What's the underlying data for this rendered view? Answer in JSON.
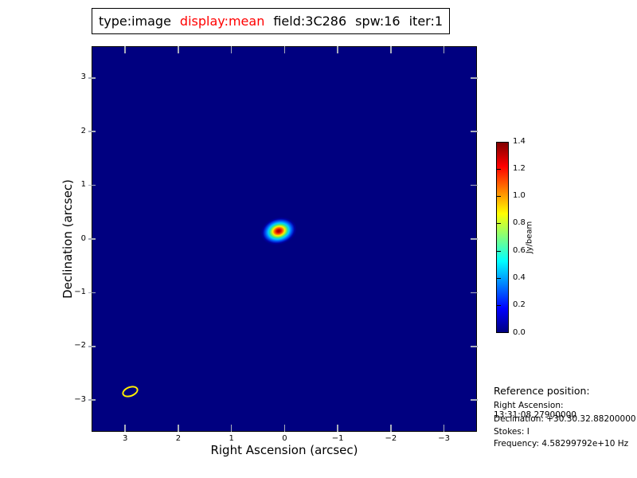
{
  "title": {
    "parts": [
      {
        "text": "type:image",
        "color": "#000000"
      },
      {
        "text": "display:mean",
        "color": "#ff0000"
      },
      {
        "text": "field:3C286",
        "color": "#000000"
      },
      {
        "text": "spw:16",
        "color": "#000000"
      },
      {
        "text": "iter:1",
        "color": "#000000"
      }
    ],
    "highlight_color": "#ff0000"
  },
  "axes": {
    "xlabel": "Right Ascension (arcsec)",
    "ylabel": "Declination (arcsec)",
    "x_tick_labels": [
      "3",
      "2",
      "1",
      "0",
      "−1",
      "−2",
      "−3"
    ],
    "y_tick_labels": [
      "3",
      "2",
      "1",
      "0",
      "−1",
      "−2",
      "−3"
    ]
  },
  "colorbar": {
    "label": "Jy/beam",
    "tick_labels": [
      "0.0",
      "0.2",
      "0.4",
      "0.6",
      "0.8",
      "1.0",
      "1.2",
      "1.4"
    ]
  },
  "reference": {
    "heading": "Reference position:",
    "lines": [
      "Right Ascension: 13:31:08.27900000",
      "Declination: +30.30.32.88200000",
      "Stokes: I",
      "Frequency: 4.58299792e+10 Hz"
    ]
  },
  "chart_data": {
    "type": "heatmap",
    "title": "type:image display:mean field:3C286 spw:16 iter:1",
    "xlabel": "Right Ascension (arcsec)",
    "ylabel": "Declination (arcsec)",
    "xlim": [
      3.6,
      -3.6
    ],
    "ylim": [
      -3.6,
      3.6
    ],
    "x_ticks": [
      3,
      2,
      1,
      0,
      -1,
      -2,
      -3
    ],
    "y_ticks": [
      3,
      2,
      1,
      0,
      -1,
      -2,
      -3
    ],
    "colormap": "jet",
    "value_range": [
      0.0,
      1.4
    ],
    "colorbar_ticks": [
      0.0,
      0.2,
      0.4,
      0.6,
      0.8,
      1.0,
      1.2,
      1.4
    ],
    "colorbar_label": "Jy/beam",
    "background_value": 0.0,
    "background_color": "#000080",
    "grid": false,
    "features": [
      {
        "name": "point-source-3C286",
        "ra_arcsec": 0.1,
        "dec_arcsec": 0.1,
        "peak_value": 1.4,
        "extent_arcsec": 0.65
      },
      {
        "name": "beam-ellipse",
        "ra_arcsec": 2.9,
        "dec_arcsec": -2.9,
        "major_arcsec": 0.32,
        "minor_arcsec": 0.19,
        "outline_color": "#ffee00"
      }
    ]
  }
}
